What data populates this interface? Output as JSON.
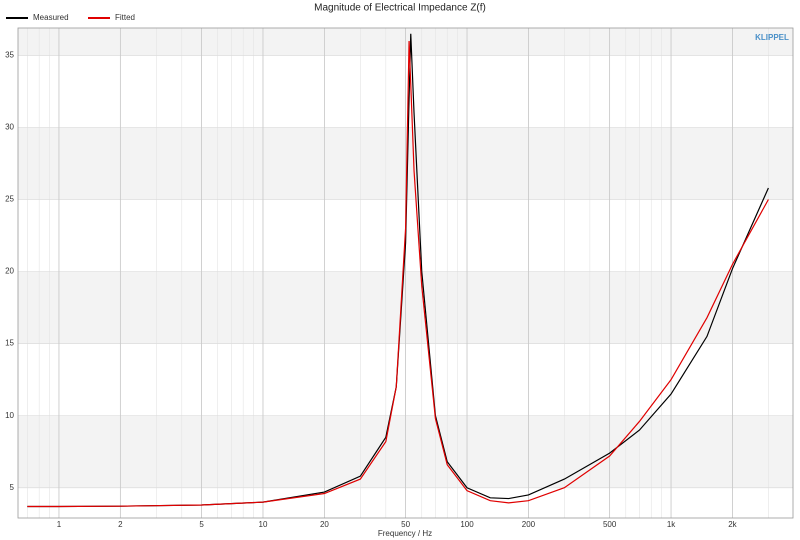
{
  "chart_data": {
    "type": "line",
    "title": "Magnitude of Electrical Impedance Z(f)",
    "xlabel": "Frequency / Hz",
    "logo": "KLIPPEL",
    "xscale": "log",
    "grid": true,
    "legend": "top-left",
    "x": [
      0.7,
      1,
      2,
      5,
      10,
      20,
      30,
      40,
      45,
      50,
      52,
      53,
      55,
      60,
      70,
      80,
      100,
      130,
      160,
      200,
      300,
      500,
      700,
      1000,
      1500,
      2000,
      3000
    ],
    "series": [
      {
        "name": "Measured",
        "color": "#000000",
        "values": [
          3.7,
          3.7,
          3.72,
          3.8,
          4.0,
          4.7,
          5.8,
          8.5,
          12,
          22,
          32,
          36.5,
          31,
          20,
          10,
          6.8,
          5.0,
          4.3,
          4.25,
          4.5,
          5.6,
          7.4,
          9.0,
          11.5,
          15.5,
          20.2,
          25.8
        ]
      },
      {
        "name": "Fitted",
        "color": "#e00000",
        "values": [
          3.7,
          3.7,
          3.72,
          3.8,
          4.0,
          4.6,
          5.6,
          8.2,
          12,
          23,
          36,
          33,
          27,
          19,
          9.8,
          6.6,
          4.8,
          4.1,
          3.95,
          4.1,
          5.0,
          7.2,
          9.6,
          12.5,
          16.8,
          20.5,
          25.0
        ]
      }
    ],
    "xlim": [
      0.63,
      3960
    ],
    "ylim": [
      2.9,
      36.9
    ],
    "xticks": [
      1,
      2,
      5,
      10,
      20,
      50,
      100,
      200,
      500,
      {
        "value": 1000,
        "label": "1k"
      },
      {
        "value": 2000,
        "label": "2k"
      }
    ],
    "yticks": [
      5,
      10,
      15,
      20,
      25,
      30,
      35
    ]
  }
}
